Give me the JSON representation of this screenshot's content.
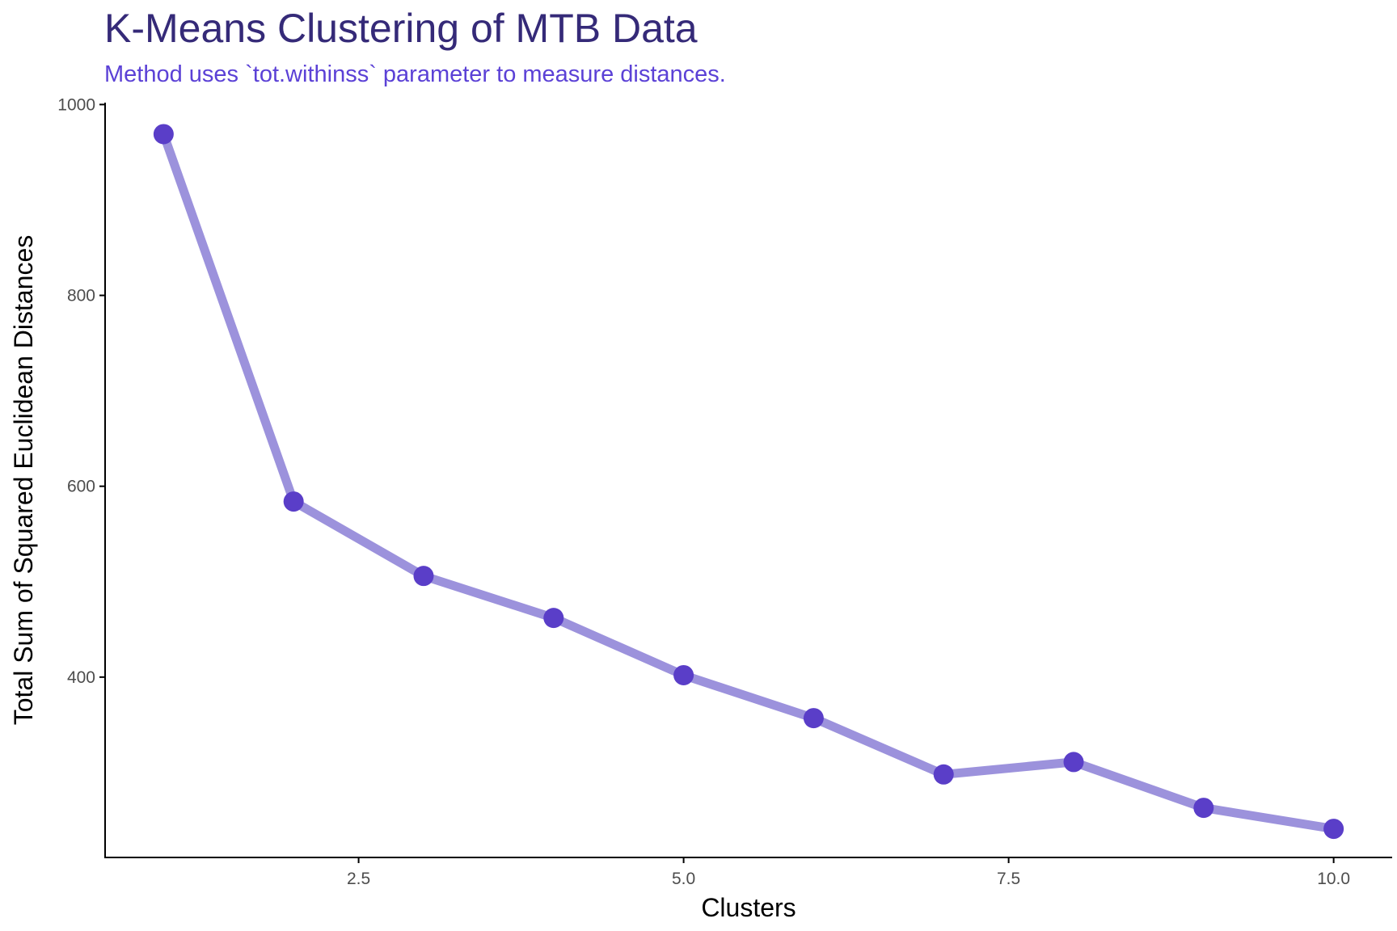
{
  "chart_data": {
    "type": "line",
    "title": "K-Means Clustering of MTB Data",
    "subtitle": "Method uses `tot.withinss` parameter to measure distances.",
    "xlabel": "Clusters",
    "ylabel": "Total Sum of Squared Euclidean Distances",
    "x": [
      1,
      2,
      3,
      4,
      5,
      6,
      7,
      8,
      9,
      10
    ],
    "series": [
      {
        "values": [
          969,
          584,
          506,
          462,
          402,
          357,
          298,
          311,
          263,
          241
        ]
      }
    ],
    "xlim": [
      0.55,
      10.45
    ],
    "ylim": [
      211,
      1002
    ],
    "xticks": [
      2.5,
      5.0,
      7.5,
      10.0
    ],
    "xtick_labels": [
      "2.5",
      "5.0",
      "7.5",
      "10.0"
    ],
    "yticks": [
      400,
      600,
      800,
      1000
    ],
    "ytick_labels": [
      "400",
      "600",
      "800",
      "1000"
    ],
    "grid": false,
    "legend": "none",
    "colors": {
      "title": "#352A78",
      "subtitle": "#5B41D6",
      "line": "#9C92DC",
      "points": "#5A3EC8",
      "axis": "#000000"
    }
  }
}
